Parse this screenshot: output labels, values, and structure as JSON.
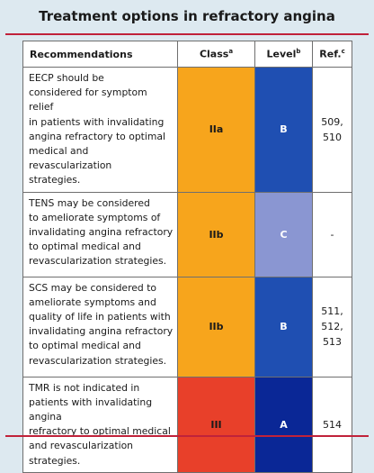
{
  "title": "Treatment options in refractory angina",
  "headers": {
    "recommendations": "Recommendations",
    "class": "Class",
    "class_sup": "a",
    "level": "Level",
    "level_sup": "b",
    "ref": "Ref.",
    "ref_sup": "c"
  },
  "rows": [
    {
      "lines": [
        "EECP should be",
        "considered for symptom relief",
        "in patients with invalidating",
        "angina refractory to optimal",
        "medical and revascularization",
        "strategies."
      ],
      "class": "IIa",
      "class_color": "#f7a51c",
      "level": "B",
      "level_color": "#1f4fb2",
      "ref": [
        "509, 510"
      ]
    },
    {
      "lines": [
        "TENS may be considered",
        "to ameliorate symptoms of",
        "invalidating angina refractory",
        "to optimal medical and",
        "revascularization strategies."
      ],
      "class": "IIb",
      "class_color": "#f7a51c",
      "level": "C",
      "level_color": "#8a96d2",
      "ref": [
        "-"
      ]
    },
    {
      "lines": [
        "SCS may be considered to",
        "ameliorate symptoms and",
        "quality of life in patients with",
        "invalidating angina refractory",
        "to optimal medical and",
        "revascularization strategies."
      ],
      "class": "IIb",
      "class_color": "#f7a51c",
      "level": "B",
      "level_color": "#1f4fb2",
      "ref": [
        "511, 512,",
        "513"
      ]
    },
    {
      "lines": [
        "TMR is not indicated in",
        "patients with invalidating angina",
        "refractory to optimal medical",
        "and revascularization strategies."
      ],
      "class": "III",
      "class_color": "#e8402a",
      "level": "A",
      "level_color": "#0a2796",
      "ref": [
        "514"
      ]
    }
  ]
}
